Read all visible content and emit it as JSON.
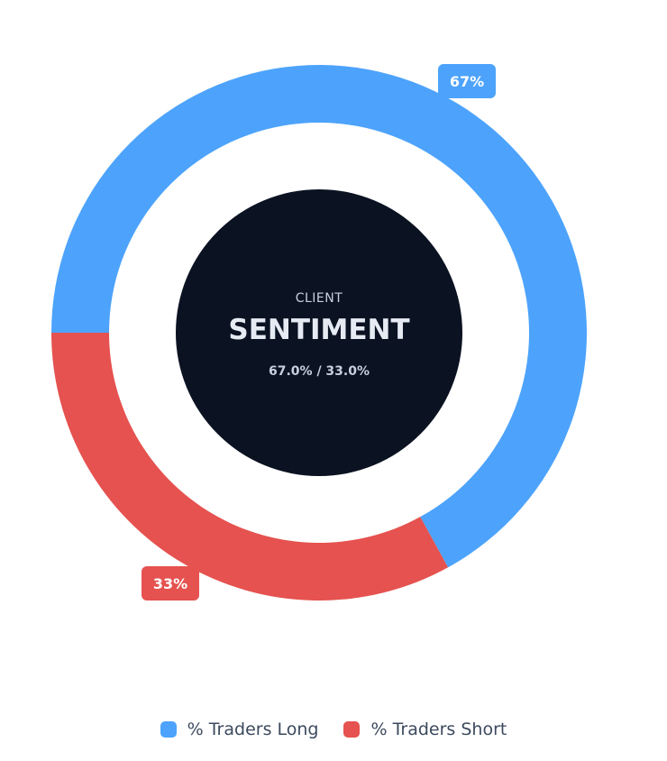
{
  "colors": {
    "long": "#4da3fb",
    "short": "#e5524f",
    "center_bg": "#0b1222",
    "center_text": "#e6ebf3",
    "center_subtext": "#c8d0dc"
  },
  "center": {
    "line1": "CLIENT",
    "line2": "SENTIMENT",
    "ratio": "67.0% / 33.0%"
  },
  "chart_data": {
    "type": "pie",
    "subtype": "donut",
    "categories": [
      "% Traders Long",
      "% Traders Short"
    ],
    "values": [
      67.0,
      33.0
    ],
    "data_labels": [
      "67%",
      "33%"
    ],
    "legend_position": "bottom"
  },
  "legend": {
    "items": [
      {
        "label": "% Traders Long",
        "color": "#4da3fb"
      },
      {
        "label": "% Traders Short",
        "color": "#e5524f"
      }
    ]
  }
}
